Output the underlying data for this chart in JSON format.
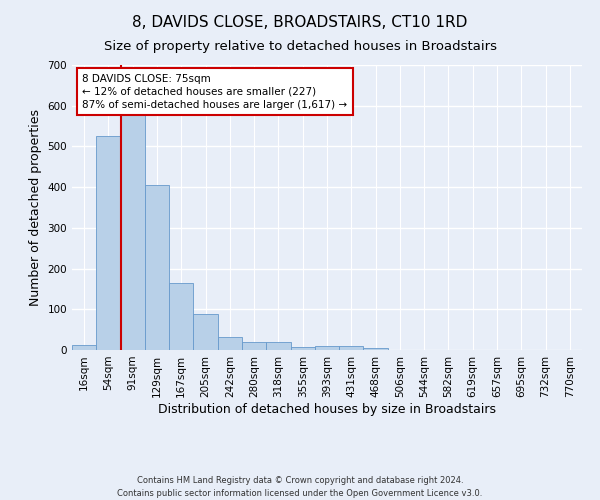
{
  "title": "8, DAVIDS CLOSE, BROADSTAIRS, CT10 1RD",
  "subtitle": "Size of property relative to detached houses in Broadstairs",
  "xlabel": "Distribution of detached houses by size in Broadstairs",
  "ylabel": "Number of detached properties",
  "footer_line1": "Contains HM Land Registry data © Crown copyright and database right 2024.",
  "footer_line2": "Contains public sector information licensed under the Open Government Licence v3.0.",
  "bin_labels": [
    "16sqm",
    "54sqm",
    "91sqm",
    "129sqm",
    "167sqm",
    "205sqm",
    "242sqm",
    "280sqm",
    "318sqm",
    "355sqm",
    "393sqm",
    "431sqm",
    "468sqm",
    "506sqm",
    "544sqm",
    "582sqm",
    "619sqm",
    "657sqm",
    "695sqm",
    "732sqm",
    "770sqm"
  ],
  "bar_heights": [
    13,
    525,
    580,
    405,
    165,
    88,
    32,
    20,
    20,
    8,
    10,
    10,
    5,
    0,
    0,
    0,
    0,
    0,
    0,
    0,
    0
  ],
  "bar_color": "#b8d0e8",
  "bar_edge_color": "#6699cc",
  "red_line_color": "#cc0000",
  "annotation_text": "8 DAVIDS CLOSE: 75sqm\n← 12% of detached houses are smaller (227)\n87% of semi-detached houses are larger (1,617) →",
  "annotation_box_color": "#ffffff",
  "annotation_box_edge_color": "#cc0000",
  "ylim": [
    0,
    700
  ],
  "yticks": [
    0,
    100,
    200,
    300,
    400,
    500,
    600,
    700
  ],
  "bg_color": "#e8eef8",
  "plot_bg_color": "#e8eef8",
  "grid_color": "#ffffff",
  "title_fontsize": 11,
  "subtitle_fontsize": 9.5,
  "tick_fontsize": 7.5,
  "ylabel_fontsize": 9,
  "xlabel_fontsize": 9,
  "footer_fontsize": 6,
  "annotation_fontsize": 7.5,
  "red_line_x": 1.5
}
